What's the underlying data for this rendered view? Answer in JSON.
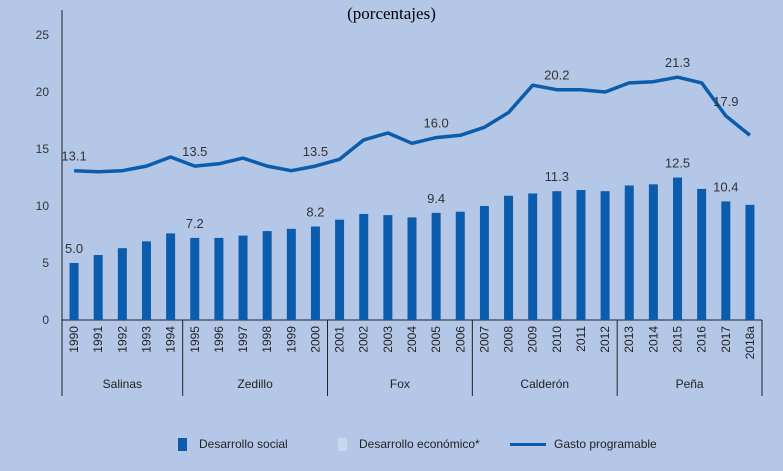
{
  "title": "(porcentajes)",
  "colors": {
    "background": "#b4c7e7",
    "bar": "#0b5cad",
    "line": "#0b5cad",
    "bar_economico": "#c9d6ee",
    "axis": "#222222",
    "label": "#333333"
  },
  "legend": {
    "social": "Desarrollo social",
    "economico": "Desarrollo económico*",
    "gasto": "Gasto programable"
  },
  "chart_data": {
    "type": "bar",
    "title": "(porcentajes)",
    "xlabel": "",
    "ylabel": "",
    "ylim": [
      0,
      25
    ],
    "yticks": [
      0,
      5,
      10,
      15,
      20,
      25
    ],
    "categories": [
      "1990",
      "1991",
      "1992",
      "1993",
      "1994",
      "1995",
      "1996",
      "1997",
      "1998",
      "1999",
      "2000",
      "2001",
      "2002",
      "2003",
      "2004",
      "2005",
      "2006",
      "2007",
      "2008",
      "2009",
      "2010",
      "2011",
      "2012",
      "2013",
      "2014",
      "2015",
      "2016",
      "2017",
      "2018a"
    ],
    "series": [
      {
        "name": "Desarrollo social",
        "type": "bar",
        "values": [
          5.0,
          5.7,
          6.3,
          6.9,
          7.6,
          7.2,
          7.2,
          7.4,
          7.8,
          8.0,
          8.2,
          8.8,
          9.3,
          9.2,
          9.0,
          9.4,
          9.5,
          10.0,
          10.9,
          11.1,
          11.3,
          11.4,
          11.3,
          11.8,
          11.9,
          12.5,
          11.5,
          10.4,
          10.1
        ]
      },
      {
        "name": "Gasto programable",
        "type": "line",
        "values": [
          13.1,
          13.0,
          13.1,
          13.5,
          14.3,
          13.5,
          13.7,
          14.2,
          13.5,
          13.1,
          13.5,
          14.1,
          15.8,
          16.4,
          15.5,
          16.0,
          16.2,
          16.9,
          18.2,
          20.6,
          20.2,
          20.2,
          20.0,
          20.8,
          20.9,
          21.3,
          20.8,
          17.9,
          16.2
        ]
      }
    ],
    "bar_labels": [
      {
        "index": 0,
        "text": "5.0"
      },
      {
        "index": 5,
        "text": "7.2"
      },
      {
        "index": 10,
        "text": "8.2"
      },
      {
        "index": 15,
        "text": "9.4"
      },
      {
        "index": 20,
        "text": "11.3"
      },
      {
        "index": 25,
        "text": "12.5"
      },
      {
        "index": 27,
        "text": "10.4"
      }
    ],
    "line_labels": [
      {
        "index": 0,
        "text": "13.1"
      },
      {
        "index": 5,
        "text": "13.5"
      },
      {
        "index": 10,
        "text": "13.5"
      },
      {
        "index": 15,
        "text": "16.0"
      },
      {
        "index": 20,
        "text": "20.2"
      },
      {
        "index": 25,
        "text": "21.3"
      },
      {
        "index": 27,
        "text": "17.9"
      }
    ],
    "groups": [
      {
        "name": "Salinas",
        "start": 0,
        "end": 4
      },
      {
        "name": "Zedillo",
        "start": 5,
        "end": 10
      },
      {
        "name": "Fox",
        "start": 11,
        "end": 16
      },
      {
        "name": "Calderón",
        "start": 17,
        "end": 22
      },
      {
        "name": "Peña",
        "start": 23,
        "end": 28
      }
    ],
    "legend_position": "bottom"
  }
}
